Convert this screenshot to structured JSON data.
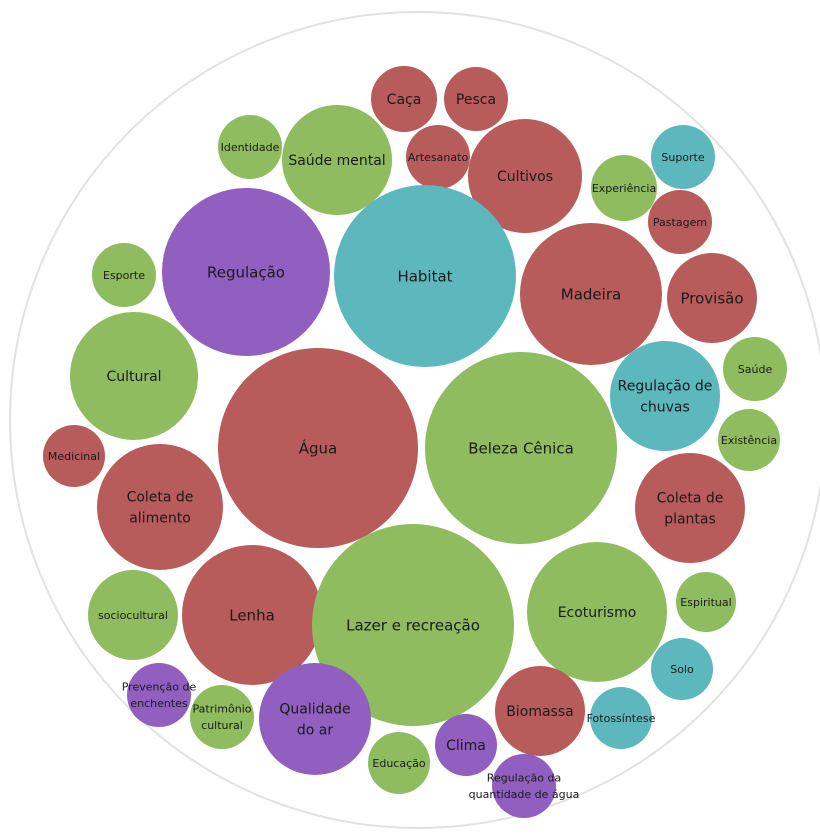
{
  "chart_data": {
    "type": "bubble",
    "colors": {
      "green": "#8fbc5f",
      "red": "#b85b5b",
      "teal": "#5cb8bd",
      "purple": "#905fbf",
      "outline": "#e2e2e2"
    },
    "bubbles": [
      {
        "label": "Caça",
        "color": "red"
      },
      {
        "label": "Pesca",
        "color": "red"
      },
      {
        "label": "Identidade",
        "color": "green"
      },
      {
        "label": "Saúde mental",
        "color": "green"
      },
      {
        "label": "Artesanato",
        "color": "red"
      },
      {
        "label": "Cultivos",
        "color": "red"
      },
      {
        "label": "Suporte",
        "color": "teal"
      },
      {
        "label": "Experiência",
        "color": "green"
      },
      {
        "label": "Pastagem",
        "color": "red"
      },
      {
        "label": "Regulação",
        "color": "purple"
      },
      {
        "label": "Habitat",
        "color": "teal"
      },
      {
        "label": "Madeira",
        "color": "red"
      },
      {
        "label": "Provisão",
        "color": "red"
      },
      {
        "label": "Esporte",
        "color": "green"
      },
      {
        "label": "Cultural",
        "color": "green"
      },
      {
        "label": "Saúde",
        "color": "green"
      },
      {
        "label": "Regulação de chuvas",
        "color": "teal"
      },
      {
        "label": "Existência",
        "color": "green"
      },
      {
        "label": "Água",
        "color": "red"
      },
      {
        "label": "Beleza Cênica",
        "color": "green"
      },
      {
        "label": "Medicinal",
        "color": "red"
      },
      {
        "label": "Coleta de alimento",
        "color": "red"
      },
      {
        "label": "Coleta de plantas",
        "color": "red"
      },
      {
        "label": "Espiritual",
        "color": "green"
      },
      {
        "label": "sociocultural",
        "color": "green"
      },
      {
        "label": "Lenha",
        "color": "red"
      },
      {
        "label": "Lazer e recreação",
        "color": "green"
      },
      {
        "label": "Ecoturismo",
        "color": "green"
      },
      {
        "label": "Solo",
        "color": "teal"
      },
      {
        "label": "Prevenção de enchentes",
        "color": "purple"
      },
      {
        "label": "Patrimônio cultural",
        "color": "green"
      },
      {
        "label": "Qualidade do ar",
        "color": "purple"
      },
      {
        "label": "Biomassa",
        "color": "red"
      },
      {
        "label": "Fotossíntese",
        "color": "teal"
      },
      {
        "label": "Clima",
        "color": "purple"
      },
      {
        "label": "Educação",
        "color": "green"
      },
      {
        "label": "Regulação da quantidade de água",
        "color": "purple"
      }
    ]
  }
}
